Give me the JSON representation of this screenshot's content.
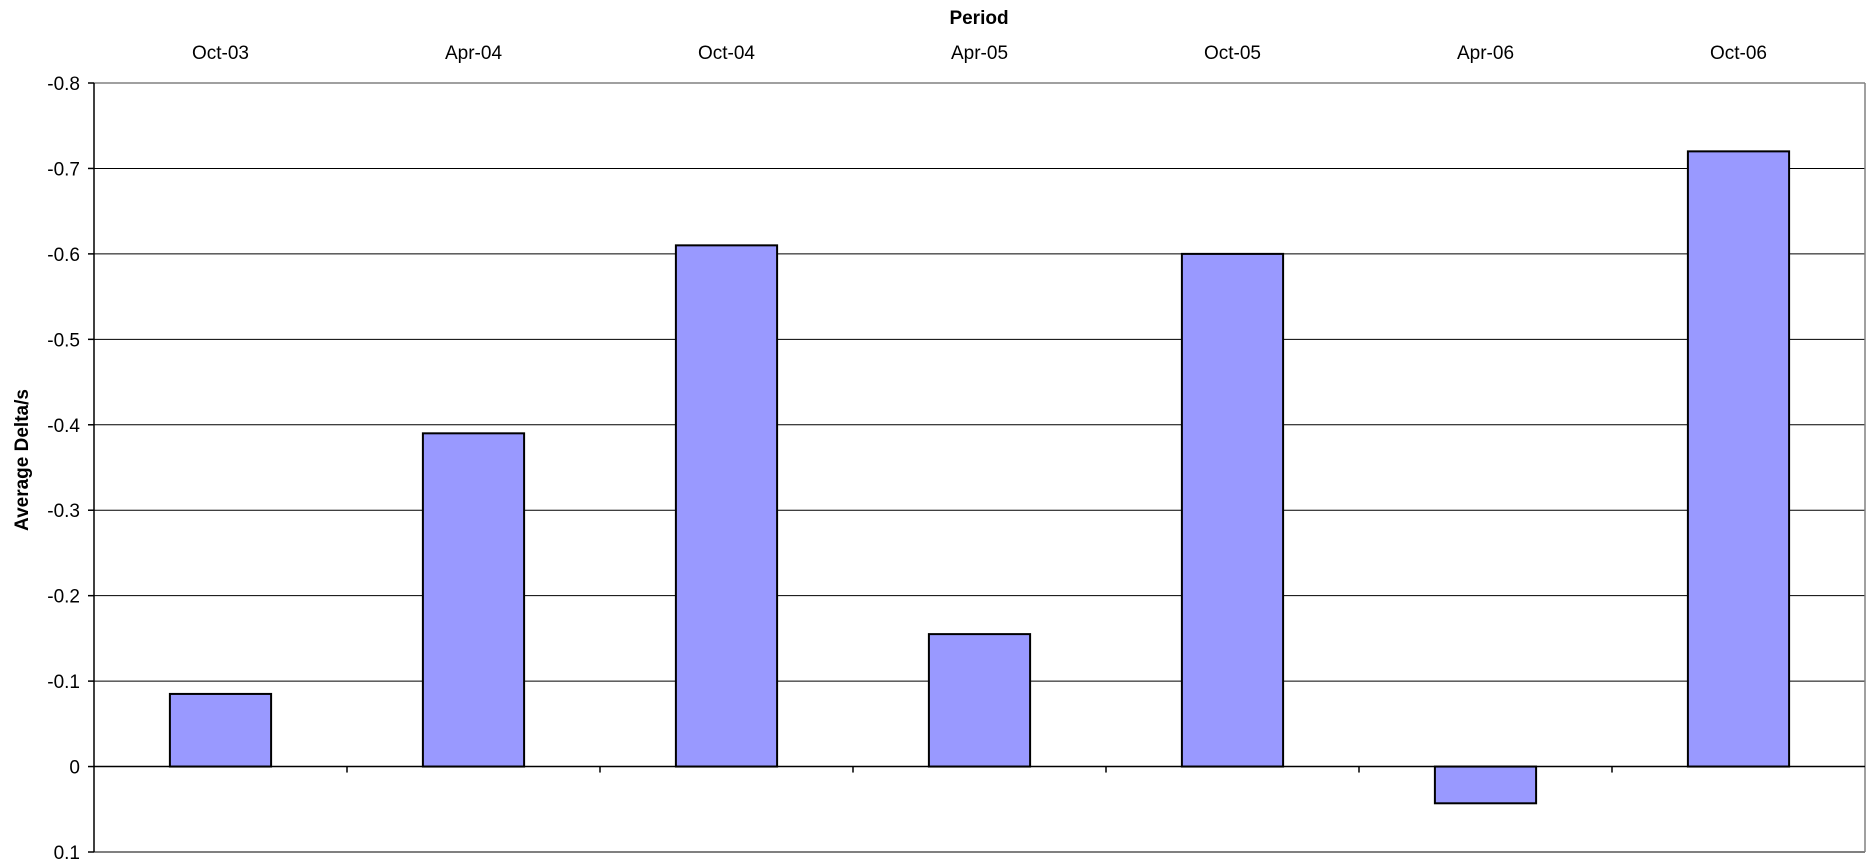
{
  "chart_data": {
    "type": "bar",
    "xlabel": "Period",
    "ylabel": "Average Delta/s",
    "categories": [
      "Oct-03",
      "Apr-04",
      "Oct-04",
      "Apr-05",
      "Oct-05",
      "Apr-06",
      "Oct-06"
    ],
    "values": [
      -0.085,
      -0.39,
      -0.61,
      -0.155,
      -0.6,
      0.043,
      -0.72
    ],
    "ylim": [
      -0.8,
      0.1
    ],
    "y_ticks": [
      "-0.8",
      "-0.7",
      "-0.6",
      "-0.5",
      "-0.4",
      "-0.3",
      "-0.2",
      "-0.1",
      "0",
      "0.1"
    ],
    "y_tick_values": [
      -0.8,
      -0.7,
      -0.6,
      -0.5,
      -0.4,
      -0.3,
      -0.2,
      -0.1,
      0,
      0.1
    ],
    "y_axis_inverted": true,
    "x_axis_position": "top",
    "grid": true,
    "legend": "none",
    "colors": {
      "bar_fill": "#9999ff",
      "bar_stroke": "#000000",
      "grid": "#000000",
      "frame": "#808080"
    }
  }
}
